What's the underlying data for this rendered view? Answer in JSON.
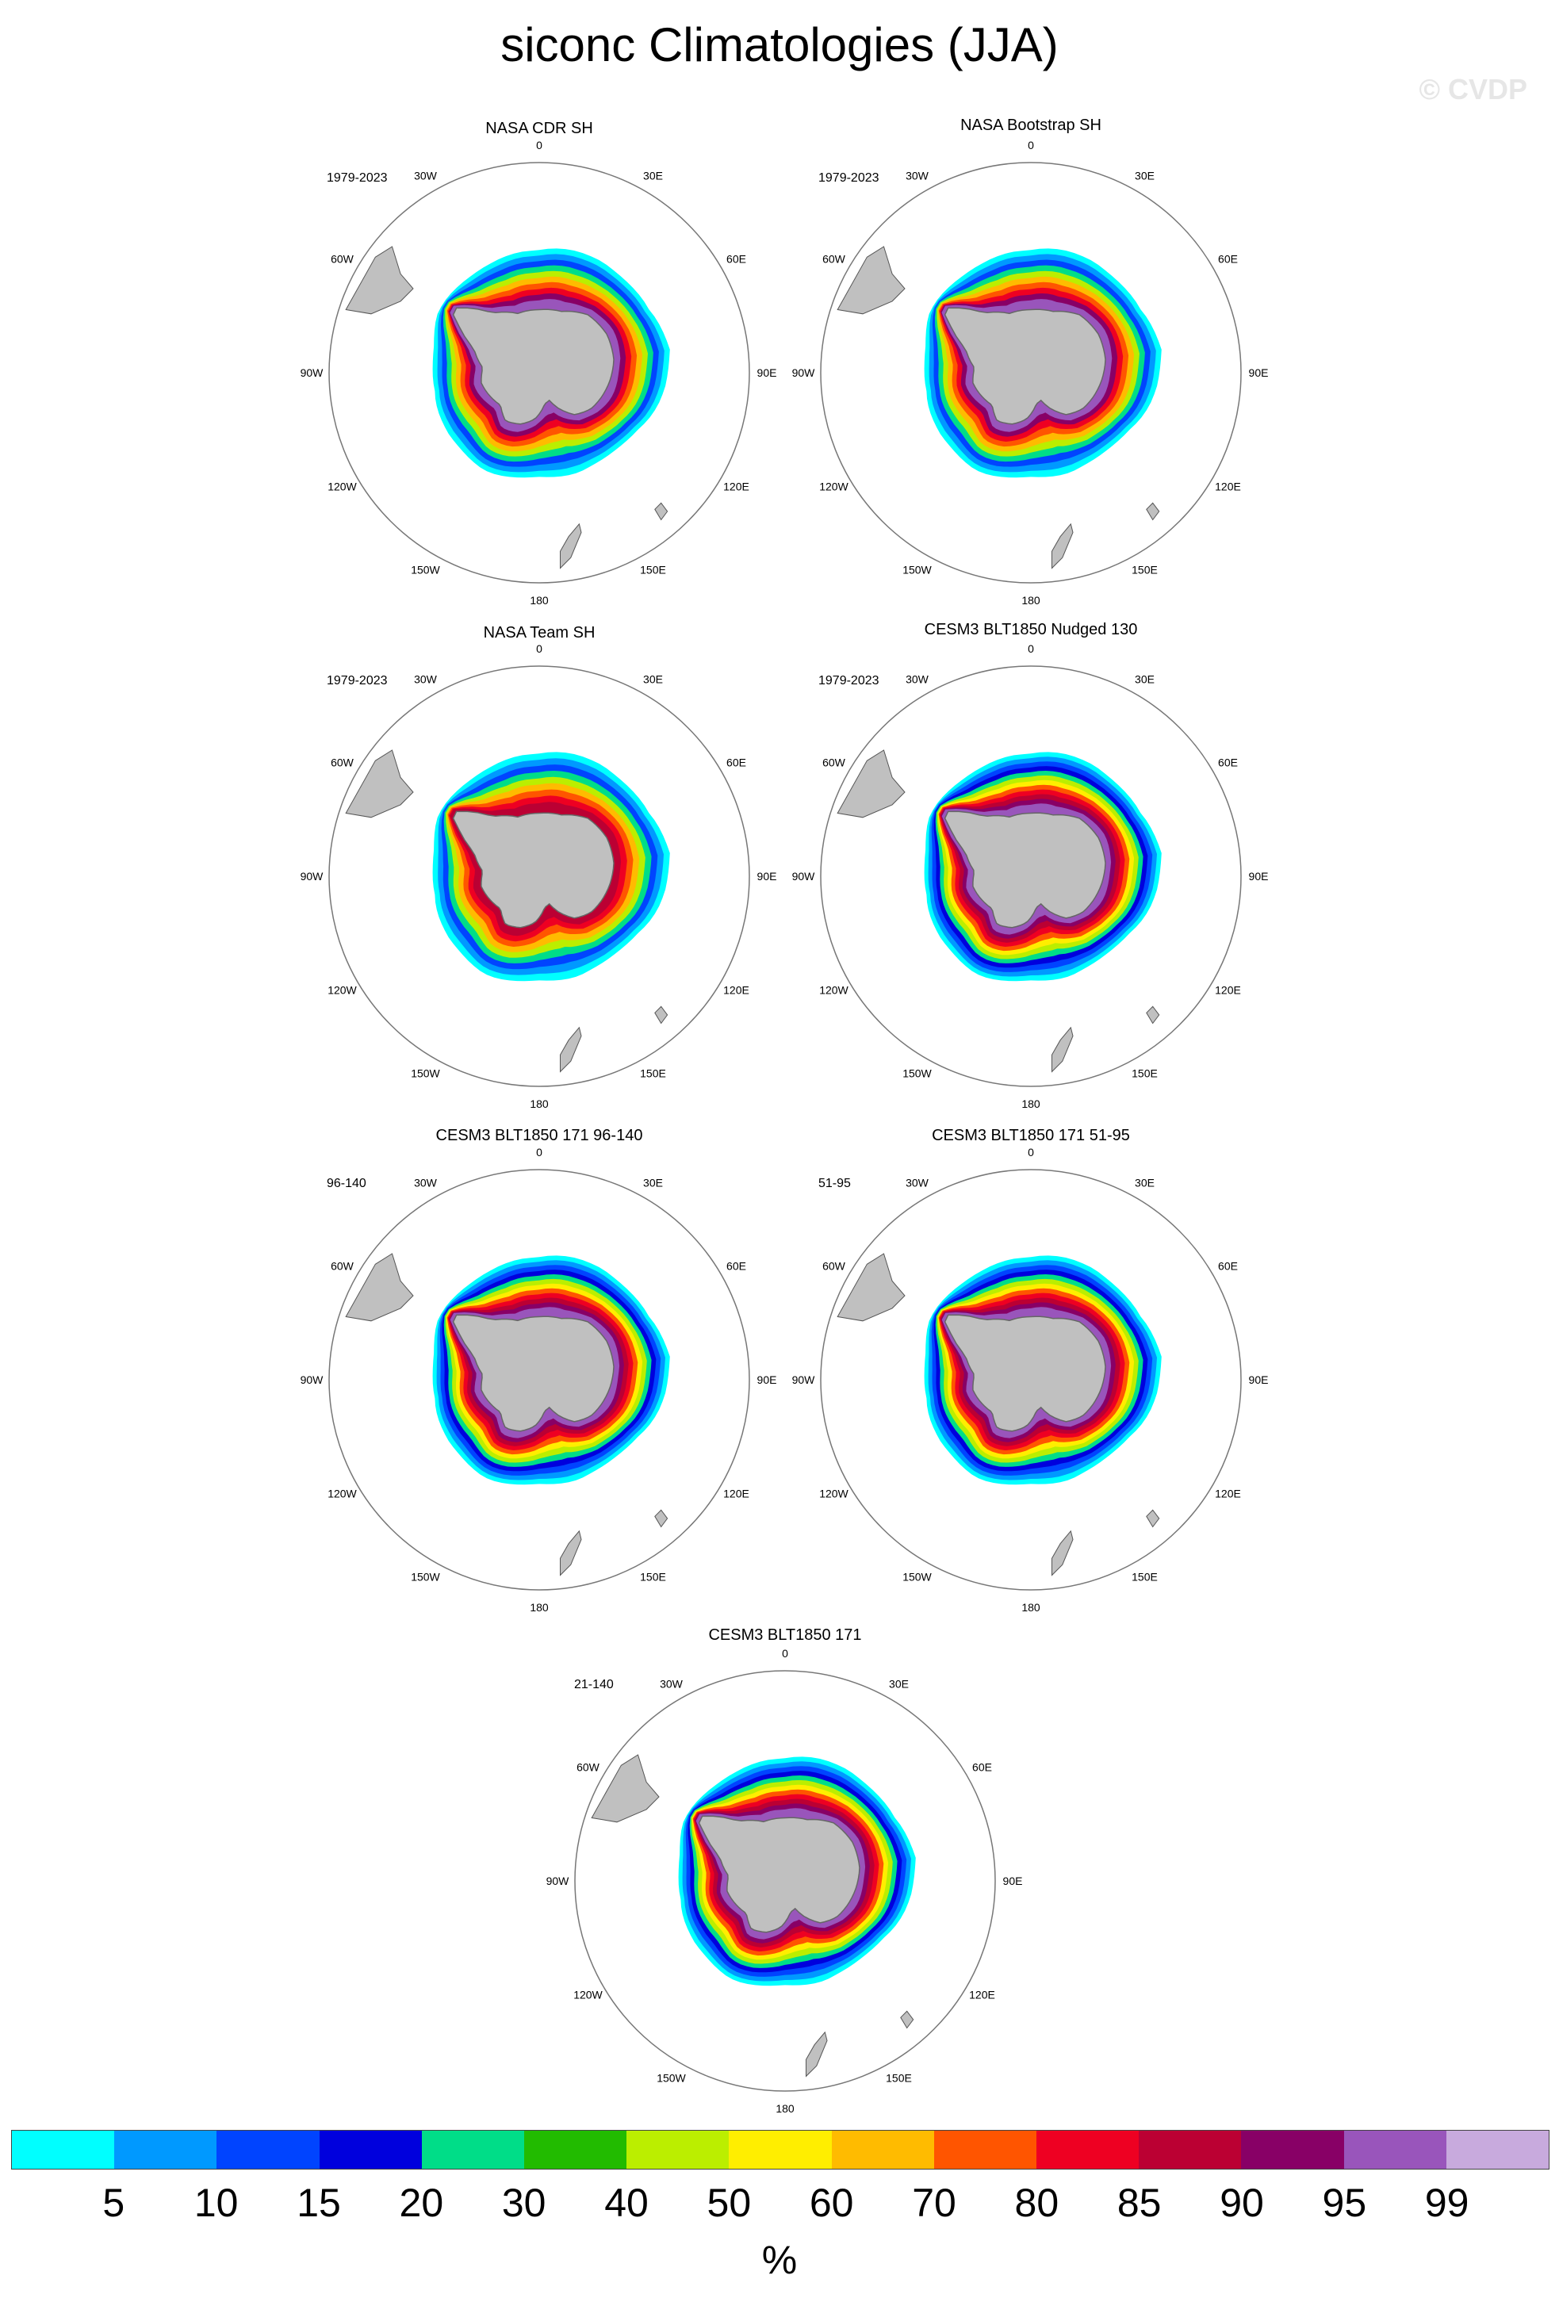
{
  "title": "siconc Climatologies (JJA)",
  "watermark": "© CVDP",
  "panels": [
    {
      "title": "NASA CDR SH",
      "period": "1979-2023"
    },
    {
      "title": "NASA Bootstrap SH",
      "period": "1979-2023"
    },
    {
      "title": "NASA Team SH",
      "period": "1979-2023"
    },
    {
      "title": "CESM3 BLT1850 Nudged 130",
      "period": "1979-2023"
    },
    {
      "title": "CESM3 BLT1850 171 96-140",
      "period": "96-140"
    },
    {
      "title": "CESM3 BLT1850 171 51-95",
      "period": "51-95"
    },
    {
      "title": "CESM3 BLT1850 171",
      "period": "21-140"
    }
  ],
  "longitude_labels": [
    "0",
    "30E",
    "60E",
    "90E",
    "120E",
    "150E",
    "180",
    "150W",
    "120W",
    "90W",
    "60W",
    "30W"
  ],
  "colorbar": {
    "colors": [
      "#00ffff",
      "#0099ff",
      "#0044ff",
      "#0000dd",
      "#00dd88",
      "#22bb00",
      "#bbee00",
      "#ffee00",
      "#ffbb00",
      "#ff5500",
      "#ee0022",
      "#bb0033",
      "#880066",
      "#9955bb",
      "#c8aadd"
    ],
    "labels": [
      "5",
      "10",
      "15",
      "20",
      "30",
      "40",
      "50",
      "60",
      "70",
      "80",
      "85",
      "90",
      "95",
      "99"
    ],
    "units": "%"
  },
  "colors": {
    "land": "#c0c0c0",
    "ocean": "#ffffff",
    "coast": "#555555"
  }
}
